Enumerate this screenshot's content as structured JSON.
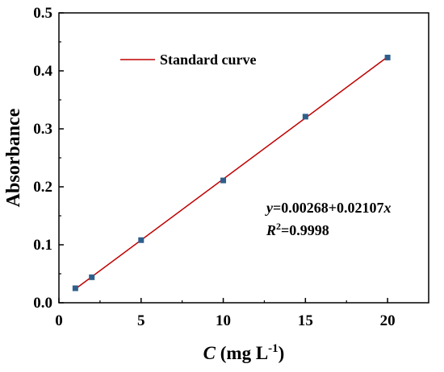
{
  "chart_data": {
    "type": "scatter",
    "title": "",
    "xlabel": {
      "symbol": "C",
      "unit_prefix": " (mg L",
      "unit_sup": "-1",
      "unit_suffix": ")"
    },
    "ylabel": "Absorbance",
    "xlim": [
      0,
      22.5
    ],
    "ylim": [
      0,
      0.5
    ],
    "x_ticks": [
      0,
      5,
      10,
      15,
      20
    ],
    "x_tick_labels": [
      "0",
      "5",
      "10",
      "15",
      "20"
    ],
    "y_ticks": [
      0,
      0.1,
      0.2,
      0.3,
      0.4,
      0.5
    ],
    "y_tick_labels": [
      "0.0",
      "0.1",
      "0.2",
      "0.3",
      "0.4",
      "0.5"
    ],
    "grid": false,
    "legend_position": "top-left",
    "series": [
      {
        "name": "",
        "kind": "points",
        "marker": "square",
        "color": "#2e5f8c",
        "x": [
          1,
          2,
          5,
          10,
          15,
          20
        ],
        "y": [
          0.025,
          0.044,
          0.108,
          0.211,
          0.321,
          0.423
        ]
      },
      {
        "name": "Standard curve",
        "kind": "line",
        "color": "#c00000",
        "x": [
          1,
          20
        ],
        "y": [
          0.02375,
          0.42408
        ]
      }
    ],
    "annotations": {
      "equation": {
        "y_var": "y",
        "body": "=0.00268+0.02107",
        "x_var": "x"
      },
      "r2": {
        "r": "R",
        "sup": "2",
        "value": "=0.9998"
      }
    }
  }
}
